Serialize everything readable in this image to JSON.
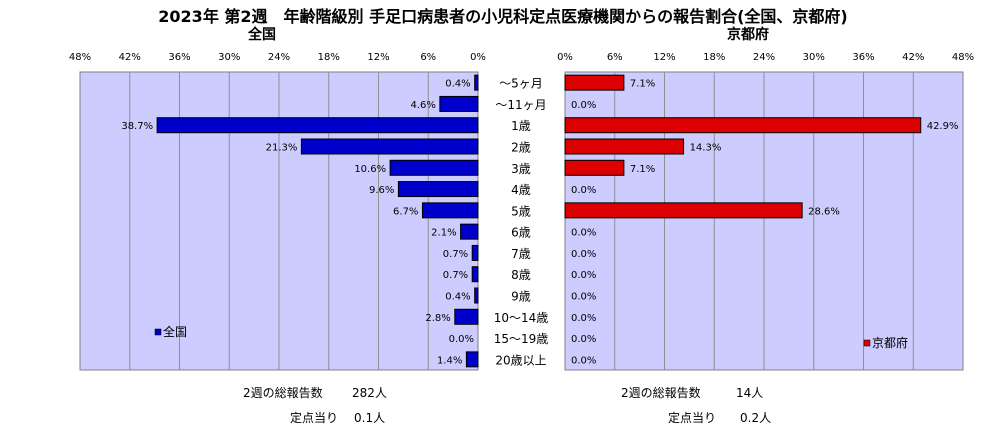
{
  "title": "2023年 第2週　年齢階級別 手足口病患者の小児科定点医療機関からの報告割合(全国、京都府)",
  "chart_data": [
    {
      "type": "bar",
      "orientation": "horizontal",
      "direction": "right-to-left",
      "title": "全国",
      "categories": [
        "～5ヶ月",
        "～11ヶ月",
        "1歳",
        "2歳",
        "3歳",
        "4歳",
        "5歳",
        "6歳",
        "7歳",
        "8歳",
        "9歳",
        "10～14歳",
        "15～19歳",
        "20歳以上"
      ],
      "series": [
        {
          "name": "全国",
          "values": [
            0.4,
            4.6,
            38.7,
            21.3,
            10.6,
            9.6,
            6.7,
            2.1,
            0.7,
            0.7,
            0.4,
            2.8,
            0.0,
            1.4
          ],
          "labels": [
            "0.4%",
            "4.6%",
            "38.7%",
            "21.3%",
            "10.6%",
            "9.6%",
            "6.7%",
            "2.1%",
            "0.7%",
            "0.7%",
            "0.4%",
            "2.8%",
            "0.0%",
            "1.4%"
          ],
          "color": "#0000cc"
        }
      ],
      "xlim": [
        0,
        48
      ],
      "ticks": [
        "0%",
        "6%",
        "12%",
        "18%",
        "24%",
        "30%",
        "36%",
        "42%",
        "48%"
      ],
      "legend_position": "bottom-left",
      "background": "#ccccff",
      "grid": true
    },
    {
      "type": "bar",
      "orientation": "horizontal",
      "direction": "left-to-right",
      "title": "京都府",
      "categories": [
        "～5ヶ月",
        "～11ヶ月",
        "1歳",
        "2歳",
        "3歳",
        "4歳",
        "5歳",
        "6歳",
        "7歳",
        "8歳",
        "9歳",
        "10～14歳",
        "15～19歳",
        "20歳以上"
      ],
      "series": [
        {
          "name": "京都府",
          "values": [
            7.1,
            0.0,
            42.9,
            14.3,
            7.1,
            0.0,
            28.6,
            0.0,
            0.0,
            0.0,
            0.0,
            0.0,
            0.0,
            0.0
          ],
          "labels": [
            "7.1%",
            "0.0%",
            "42.9%",
            "14.3%",
            "7.1%",
            "0.0%",
            "28.6%",
            "0.0%",
            "0.0%",
            "0.0%",
            "0.0%",
            "0.0%",
            "0.0%",
            "0.0%"
          ],
          "color": "#dd0000"
        }
      ],
      "xlim": [
        0,
        48
      ],
      "ticks": [
        "0%",
        "6%",
        "12%",
        "18%",
        "24%",
        "30%",
        "36%",
        "42%",
        "48%"
      ],
      "legend_position": "bottom-right",
      "background": "#ccccff",
      "grid": true
    }
  ],
  "footer": {
    "national": {
      "total_label": "2週の総報告数",
      "total_value": "282人",
      "per_label": "定点当り",
      "per_value": "0.1人"
    },
    "kyoto": {
      "total_label": "2週の総報告数",
      "total_value": "14人",
      "per_label": "定点当り",
      "per_value": "0.2人"
    }
  }
}
